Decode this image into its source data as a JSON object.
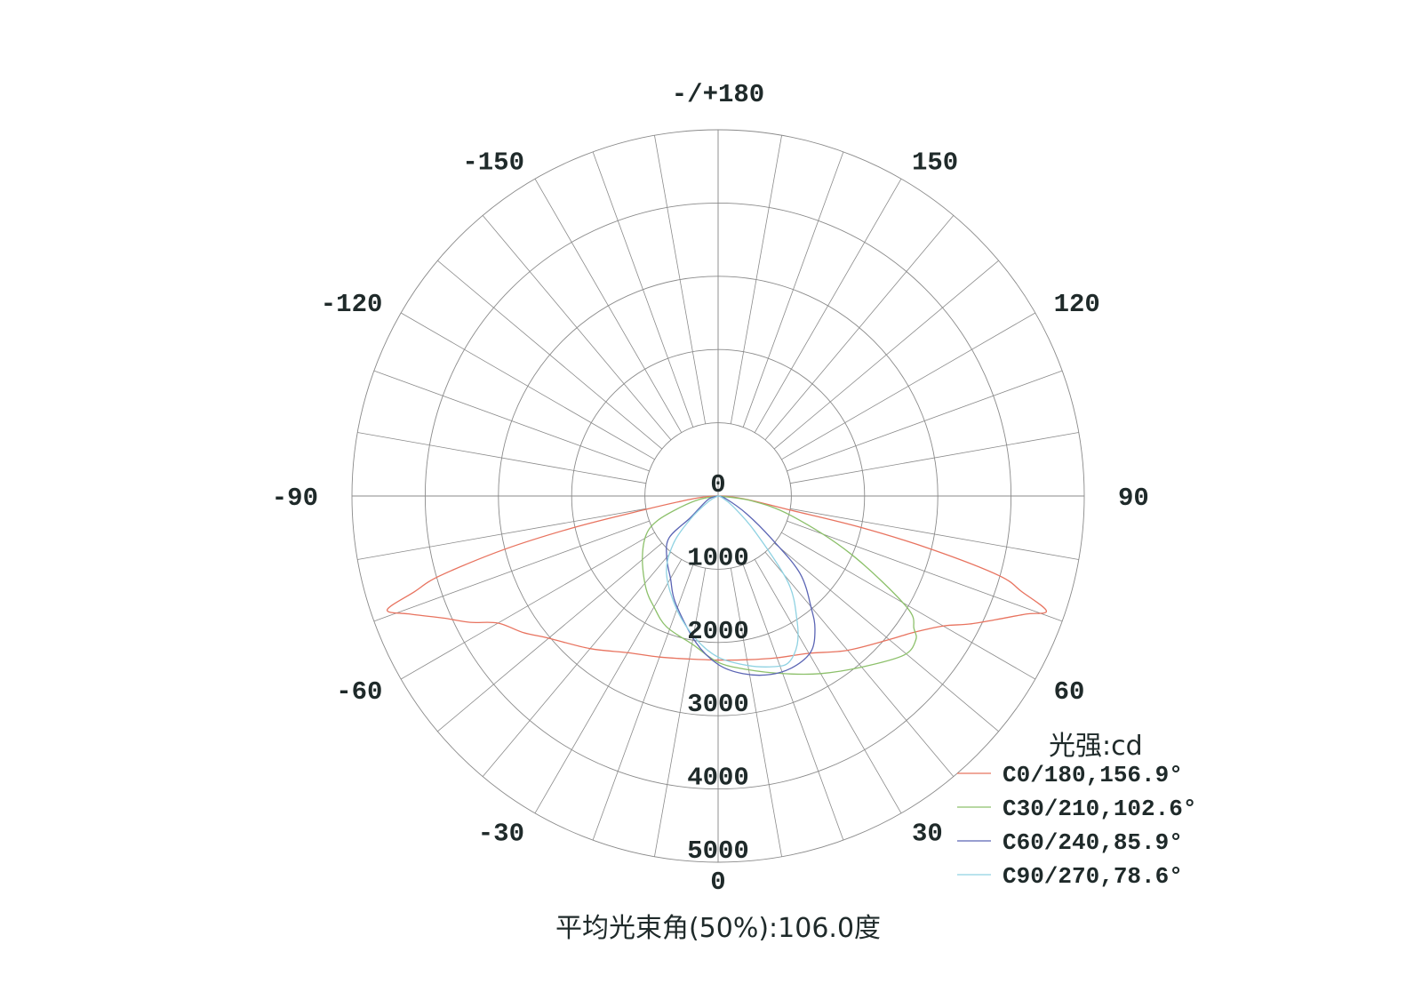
{
  "chart_data": {
    "type": "polar",
    "title": "平均光束角(50%):106.0度",
    "unit_label": "光强:cd",
    "radial_ticks": [
      "0",
      "1000",
      "2000",
      "3000",
      "4000",
      "5000"
    ],
    "radial_range": [
      0,
      5000
    ],
    "angle_ticks": [
      {
        "angle": 180,
        "label": "-/+180"
      },
      {
        "angle": 150,
        "label": "150"
      },
      {
        "angle": -150,
        "label": "-150"
      },
      {
        "angle": 120,
        "label": "120"
      },
      {
        "angle": -120,
        "label": "-120"
      },
      {
        "angle": 90,
        "label": "90"
      },
      {
        "angle": -90,
        "label": "-90"
      },
      {
        "angle": 60,
        "label": "60"
      },
      {
        "angle": -60,
        "label": "-60"
      },
      {
        "angle": 30,
        "label": "30"
      },
      {
        "angle": -30,
        "label": "-30"
      },
      {
        "angle": 0,
        "label": "0"
      }
    ],
    "grid": true,
    "legend_position": "bottom-right",
    "series": [
      {
        "name": "C0/180,156.9°",
        "color": "#e8735f",
        "points": [
          [
            -90,
            0
          ],
          [
            -86,
            200
          ],
          [
            -82,
            500
          ],
          [
            -79.5,
            1000
          ],
          [
            -77.7,
            2000
          ],
          [
            -76,
            3000
          ],
          [
            -74,
            3950
          ],
          [
            -72.5,
            4350
          ],
          [
            -71,
            4780
          ],
          [
            -69,
            4500
          ],
          [
            -66,
            4100
          ],
          [
            -63,
            3800
          ],
          [
            -60,
            3470
          ],
          [
            -55,
            3250
          ],
          [
            -50,
            3020
          ],
          [
            -40,
            2720
          ],
          [
            -30,
            2470
          ],
          [
            -20,
            2340
          ],
          [
            -10,
            2260
          ],
          [
            0,
            2240
          ],
          [
            10,
            2270
          ],
          [
            20,
            2350
          ],
          [
            30,
            2480
          ],
          [
            40,
            2750
          ],
          [
            50,
            3050
          ],
          [
            55,
            3250
          ],
          [
            60,
            3550
          ],
          [
            63,
            3850
          ],
          [
            66,
            4150
          ],
          [
            69,
            4500
          ],
          [
            70.7,
            4750
          ],
          [
            72.5,
            4350
          ],
          [
            74.2,
            3980
          ],
          [
            76,
            2990
          ],
          [
            77.6,
            1980
          ],
          [
            79,
            980
          ],
          [
            82,
            500
          ],
          [
            86,
            200
          ],
          [
            90,
            0
          ]
        ]
      },
      {
        "name": "C30/210,102.6°",
        "color": "#8cc06a",
        "points": [
          [
            -90,
            0
          ],
          [
            -80,
            250
          ],
          [
            -73.7,
            520
          ],
          [
            -68,
            890
          ],
          [
            -61.5,
            1120
          ],
          [
            -50,
            1350
          ],
          [
            -38,
            1600
          ],
          [
            -30,
            1750
          ],
          [
            -21.5,
            1920
          ],
          [
            -9.5,
            2060
          ],
          [
            0,
            2270
          ],
          [
            9.3,
            2400
          ],
          [
            20,
            2580
          ],
          [
            30,
            2800
          ],
          [
            40,
            3050
          ],
          [
            49.4,
            3340
          ],
          [
            53.9,
            3340
          ],
          [
            55.9,
            3230
          ],
          [
            59.5,
            2990
          ],
          [
            66.4,
            1980
          ],
          [
            75,
            1030
          ],
          [
            82,
            450
          ],
          [
            90,
            0
          ]
        ]
      },
      {
        "name": "C60/240,85.9°",
        "color": "#5a64b4",
        "points": [
          [
            -90,
            0
          ],
          [
            -70,
            150
          ],
          [
            -52,
            480
          ],
          [
            -49.5,
            880
          ],
          [
            -39.6,
            1100
          ],
          [
            -30,
            1300
          ],
          [
            -21.8,
            1570
          ],
          [
            -8.7,
            2020
          ],
          [
            0,
            2300
          ],
          [
            8,
            2450
          ],
          [
            16.4,
            2540
          ],
          [
            24,
            2550
          ],
          [
            31,
            2470
          ],
          [
            36,
            2250
          ],
          [
            39.6,
            2000
          ],
          [
            46.6,
            1540
          ],
          [
            51.5,
            920
          ],
          [
            58,
            460
          ],
          [
            70,
            120
          ],
          [
            90,
            0
          ]
        ]
      },
      {
        "name": "C90/270,78.6°",
        "color": "#8fd2e2",
        "points": [
          [
            -90,
            0
          ],
          [
            -60,
            150
          ],
          [
            -50,
            500
          ],
          [
            -43,
            900
          ],
          [
            -33.7,
            1270
          ],
          [
            -20,
            1650
          ],
          [
            -9,
            1970
          ],
          [
            0,
            2200
          ],
          [
            10,
            2350
          ],
          [
            18,
            2450
          ],
          [
            22.9,
            2470
          ],
          [
            28,
            2300
          ],
          [
            32.4,
            2010
          ],
          [
            39,
            1520
          ],
          [
            46,
            700
          ],
          [
            55,
            250
          ],
          [
            70,
            50
          ],
          [
            90,
            0
          ]
        ]
      }
    ]
  }
}
